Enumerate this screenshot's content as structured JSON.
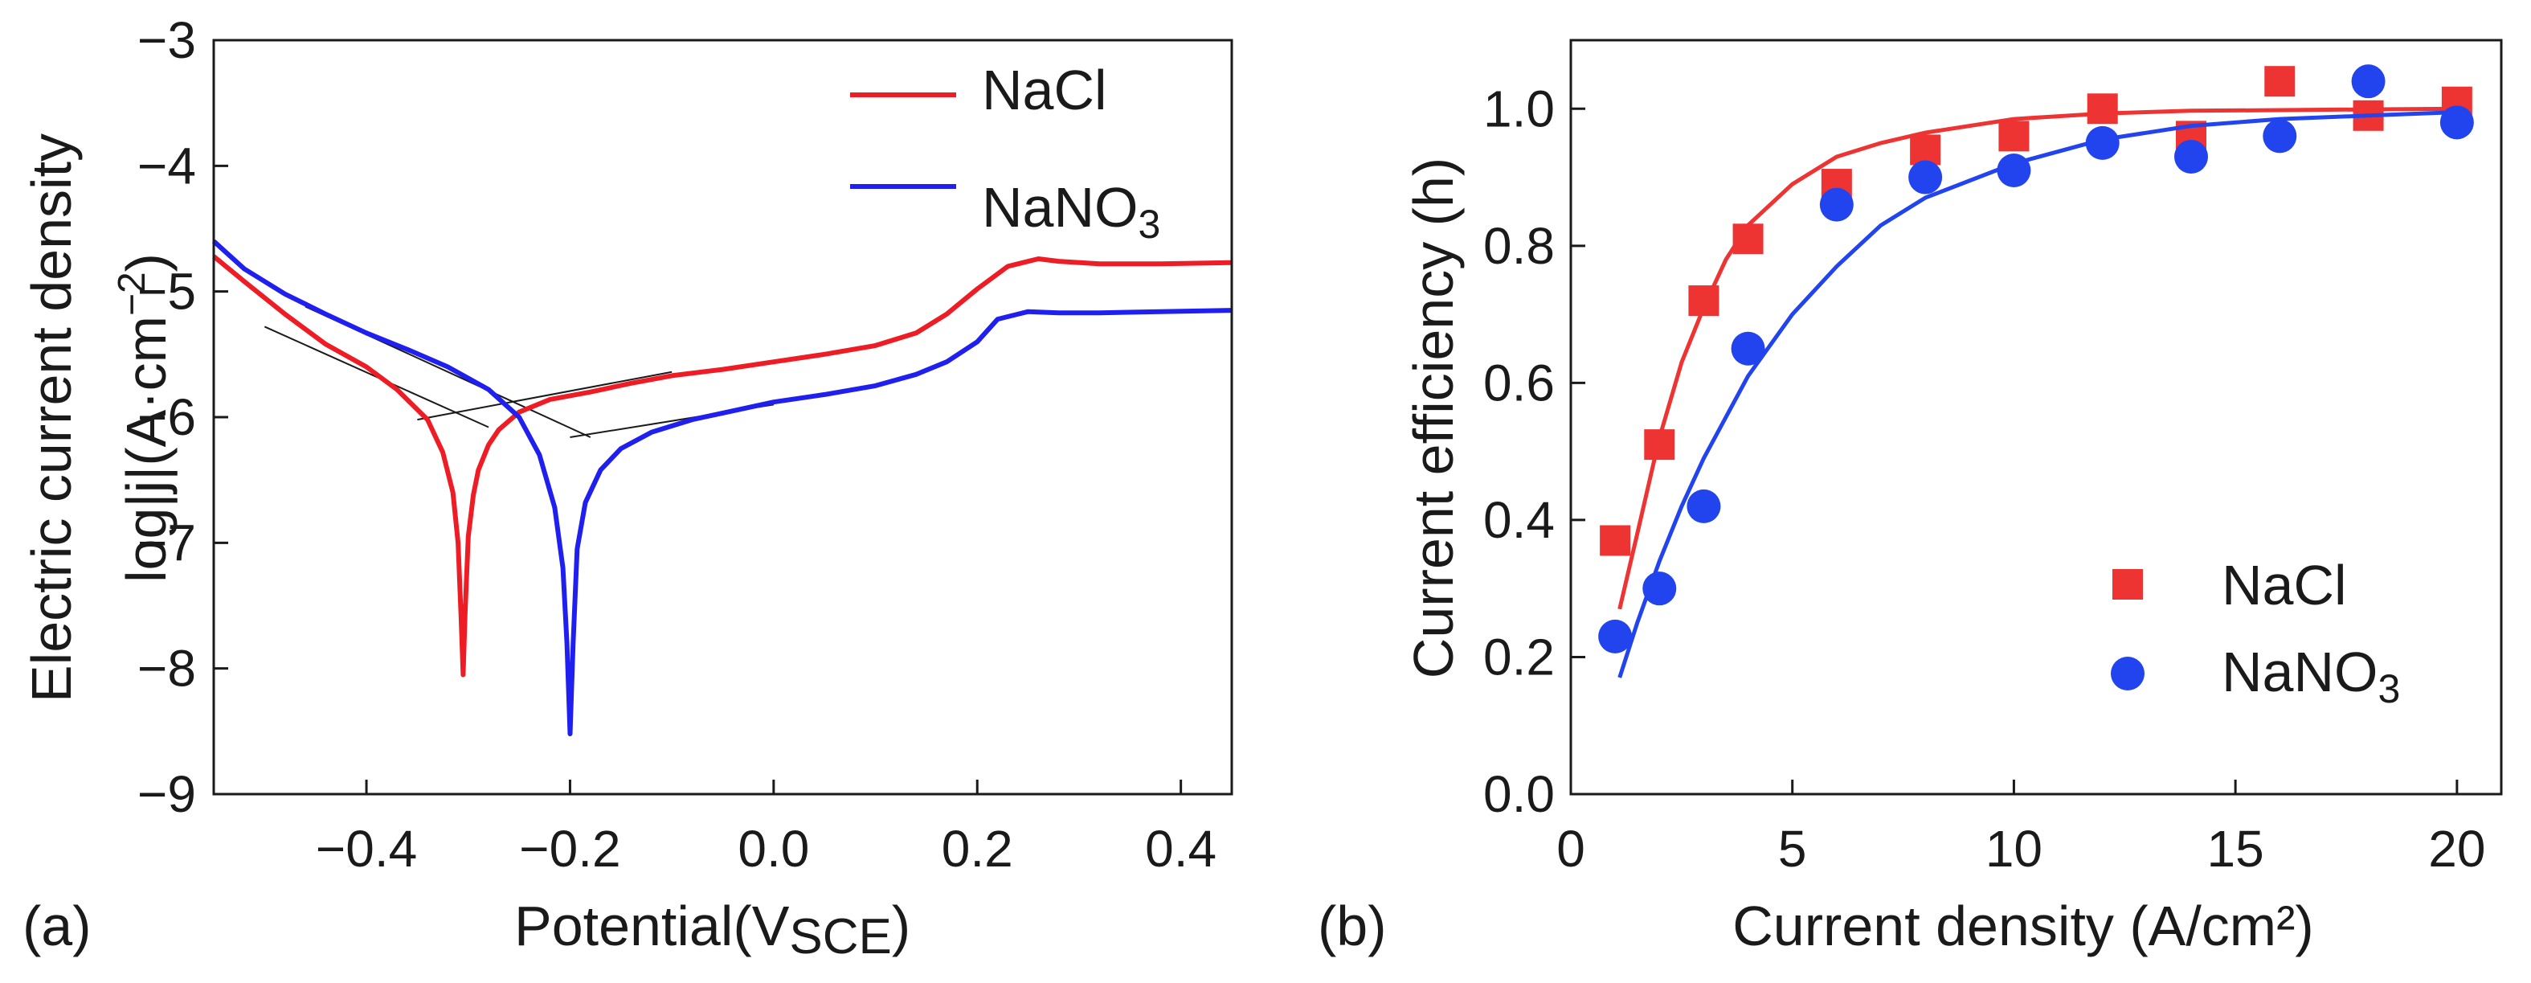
{
  "chart_data": [
    {
      "panel_label": "(a)",
      "type": "line",
      "title": "",
      "xlabel": "Potential(V",
      "xlabel_sub": "SCE",
      "xlabel_end": ")",
      "ylabel_line1": "Electric current density",
      "ylabel_line2_prefix": "log|j|(A·cm",
      "ylabel_line2_sup": "−2",
      "ylabel_line2_suffix": ")",
      "xlim": [
        -0.55,
        0.45
      ],
      "ylim": [
        -9,
        -3
      ],
      "xticks": [
        -0.4,
        -0.2,
        0.0,
        0.2,
        0.4
      ],
      "xtick_labels": [
        "−0.4",
        "−0.2",
        "0.0",
        "0.2",
        "0.4"
      ],
      "yticks": [
        -9,
        -8,
        -7,
        -6,
        -5,
        -4,
        -3
      ],
      "ytick_labels": [
        "−9",
        "−8",
        "−7",
        "−6",
        "−5",
        "−4",
        "−3"
      ],
      "legend_position": "top-right",
      "series": [
        {
          "name": "NaCl",
          "legend_label": "NaCl",
          "color": "#ee1c24",
          "x": [
            -0.55,
            -0.52,
            -0.48,
            -0.44,
            -0.4,
            -0.37,
            -0.34,
            -0.325,
            -0.315,
            -0.31,
            -0.307,
            -0.305,
            -0.303,
            -0.3,
            -0.295,
            -0.29,
            -0.28,
            -0.27,
            -0.25,
            -0.22,
            -0.18,
            -0.14,
            -0.1,
            -0.05,
            0.0,
            0.05,
            0.1,
            0.14,
            0.17,
            0.2,
            0.23,
            0.26,
            0.28,
            0.32,
            0.38,
            0.45
          ],
          "y": [
            -4.72,
            -4.92,
            -5.18,
            -5.42,
            -5.6,
            -5.78,
            -6.02,
            -6.28,
            -6.6,
            -7.0,
            -7.6,
            -8.05,
            -7.55,
            -6.95,
            -6.62,
            -6.42,
            -6.22,
            -6.1,
            -5.96,
            -5.86,
            -5.8,
            -5.73,
            -5.67,
            -5.62,
            -5.56,
            -5.5,
            -5.43,
            -5.33,
            -5.18,
            -4.98,
            -4.8,
            -4.74,
            -4.76,
            -4.78,
            -4.78,
            -4.77
          ]
        },
        {
          "name": "NaNO3",
          "legend_label": "NaNO",
          "legend_sub": "3",
          "color": "#1f1ff0",
          "x": [
            -0.55,
            -0.52,
            -0.48,
            -0.44,
            -0.4,
            -0.36,
            -0.32,
            -0.28,
            -0.25,
            -0.23,
            -0.215,
            -0.207,
            -0.203,
            -0.2,
            -0.197,
            -0.193,
            -0.185,
            -0.17,
            -0.15,
            -0.12,
            -0.08,
            -0.04,
            0.0,
            0.05,
            0.1,
            0.14,
            0.17,
            0.2,
            0.22,
            0.25,
            0.28,
            0.32,
            0.38,
            0.45
          ],
          "y": [
            -4.6,
            -4.82,
            -5.02,
            -5.18,
            -5.33,
            -5.46,
            -5.6,
            -5.78,
            -6.0,
            -6.3,
            -6.72,
            -7.2,
            -7.8,
            -8.52,
            -7.8,
            -7.05,
            -6.68,
            -6.42,
            -6.25,
            -6.12,
            -6.02,
            -5.95,
            -5.88,
            -5.82,
            -5.75,
            -5.66,
            -5.56,
            -5.4,
            -5.22,
            -5.16,
            -5.17,
            -5.17,
            -5.16,
            -5.15
          ]
        }
      ],
      "tafel_lines": [
        [
          [
            -0.5,
            -5.28
          ],
          [
            -0.28,
            -6.08
          ]
        ],
        [
          [
            -0.35,
            -6.02
          ],
          [
            -0.1,
            -5.64
          ]
        ],
        [
          [
            -0.46,
            -5.12
          ],
          [
            -0.18,
            -6.16
          ]
        ],
        [
          [
            -0.2,
            -6.16
          ],
          [
            0.0,
            -5.9
          ]
        ]
      ]
    },
    {
      "panel_label": "(b)",
      "type": "scatter",
      "title": "",
      "xlabel": "Current density (A/cm²)",
      "ylabel": "Current efficiency (h)",
      "xlim": [
        0,
        21
      ],
      "ylim": [
        0,
        1.1
      ],
      "xticks": [
        0,
        5,
        10,
        15,
        20
      ],
      "xtick_labels": [
        "0",
        "5",
        "10",
        "15",
        "20"
      ],
      "yticks": [
        0,
        0.2,
        0.4,
        0.6,
        0.8,
        1.0
      ],
      "ytick_labels": [
        "0.0",
        "0.2",
        "0.4",
        "0.6",
        "0.8",
        "1.0"
      ],
      "legend_position": "bottom-right",
      "series": [
        {
          "name": "NaCl",
          "legend_label": "NaCl",
          "marker": "square",
          "color": "#ee3333",
          "x": [
            1,
            2,
            3,
            4,
            6,
            8,
            10,
            12,
            14,
            16,
            18,
            20
          ],
          "y": [
            0.37,
            0.51,
            0.72,
            0.81,
            0.89,
            0.94,
            0.96,
            1.0,
            0.96,
            1.04,
            0.99,
            1.01
          ],
          "fit_x": [
            1.1,
            1.5,
            2,
            2.5,
            3,
            3.5,
            4,
            5,
            6,
            7,
            8,
            10,
            12,
            14,
            16,
            18,
            20
          ],
          "fit_y": [
            0.27,
            0.38,
            0.52,
            0.63,
            0.71,
            0.78,
            0.83,
            0.89,
            0.93,
            0.95,
            0.965,
            0.985,
            0.993,
            0.997,
            0.998,
            0.999,
            1.0
          ]
        },
        {
          "name": "NaNO3",
          "legend_label": "NaNO",
          "legend_sub": "3",
          "marker": "circle",
          "color": "#2244ee",
          "x": [
            1,
            2,
            3,
            4,
            6,
            8,
            10,
            12,
            14,
            16,
            18,
            20
          ],
          "y": [
            0.23,
            0.3,
            0.42,
            0.65,
            0.86,
            0.9,
            0.91,
            0.95,
            0.93,
            0.96,
            1.04,
            0.98
          ],
          "fit_x": [
            1.1,
            1.5,
            2,
            2.5,
            3,
            3.5,
            4,
            5,
            6,
            7,
            8,
            10,
            12,
            14,
            16,
            18,
            20
          ],
          "fit_y": [
            0.17,
            0.25,
            0.34,
            0.42,
            0.49,
            0.55,
            0.61,
            0.7,
            0.77,
            0.83,
            0.87,
            0.92,
            0.955,
            0.975,
            0.985,
            0.99,
            0.995
          ]
        }
      ]
    }
  ]
}
